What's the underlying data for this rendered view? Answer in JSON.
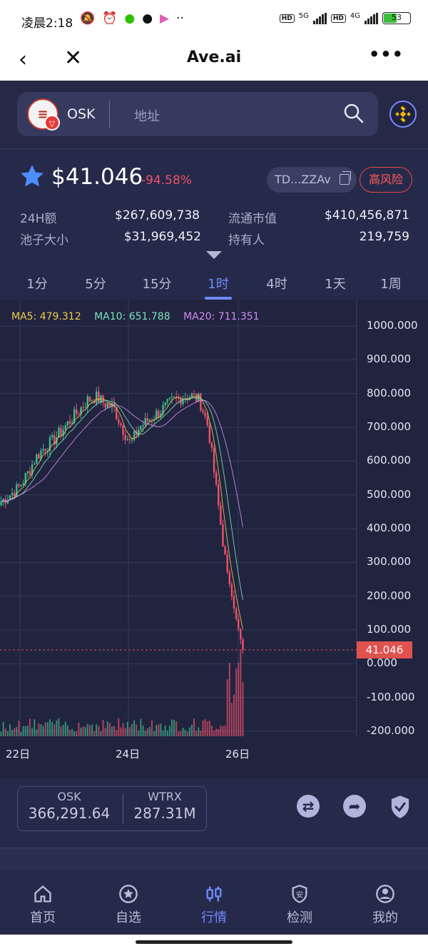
{
  "status_bar": {
    "time": "凌晨2:18",
    "net1": "5G",
    "net2": "4G",
    "hd": "HD",
    "battery": "53"
  },
  "title_bar": {
    "title": "Ave.ai",
    "back": "‹",
    "close": "✕",
    "more": "•••"
  },
  "search": {
    "token_symbol": "OSK",
    "placeholder": "地址"
  },
  "token": {
    "price": "$41.046",
    "change": "-94.58%",
    "address": "TD...ZZAv",
    "risk_badge": "高风险",
    "stats": [
      {
        "label": "24H额",
        "value": "$267,609,738"
      },
      {
        "label": "流通市值",
        "value": "$410,456,871"
      },
      {
        "label": "池子大小",
        "value": "$31,969,452"
      },
      {
        "label": "持有人",
        "value": "219,759"
      }
    ]
  },
  "tabs": [
    "1分",
    "5分",
    "15分",
    "1时",
    "4时",
    "1天",
    "1周"
  ],
  "active_tab": "1时",
  "chart_data": {
    "type": "candlestick",
    "legend": [
      {
        "name": "MA5",
        "text": "MA5: 479.312",
        "color": "#f2c94c"
      },
      {
        "name": "MA10",
        "text": "MA10: 651.788",
        "color": "#7ee3c0"
      },
      {
        "name": "MA20",
        "text": "MA20: 711.351",
        "color": "#d68cf0"
      }
    ],
    "y_ticks": [
      "1000.000",
      "900.000",
      "800.000",
      "700.000",
      "600.000",
      "500.000",
      "400.000",
      "300.000",
      "200.000",
      "100.000",
      "0.000",
      "-100.000",
      "-200.000"
    ],
    "y_tick_values": [
      1000,
      900,
      800,
      700,
      600,
      500,
      400,
      300,
      200,
      100,
      0,
      -100,
      -200
    ],
    "ylim": [
      -200,
      1000
    ],
    "x_ticks": [
      "22日",
      "24日",
      "26日"
    ],
    "last_price_label": "41.046",
    "last_price": 41.046,
    "close_path": [
      480,
      500,
      520,
      560,
      610,
      640,
      660,
      690,
      720,
      750,
      780,
      790,
      770,
      760,
      700,
      650,
      700,
      720,
      740,
      760,
      780,
      790,
      795,
      780,
      700,
      500,
      300,
      160,
      41
    ],
    "colors": {
      "up": "#3fb990",
      "down": "#f0506b"
    }
  },
  "amounts": [
    {
      "symbol": "OSK",
      "value": "366,291.64"
    },
    {
      "symbol": "WTRX",
      "value": "287.31M"
    }
  ],
  "bottom_nav": [
    {
      "label": "首页",
      "icon": "home-icon"
    },
    {
      "label": "自选",
      "icon": "star-circle-icon"
    },
    {
      "label": "行情",
      "icon": "candles-icon"
    },
    {
      "label": "检测",
      "icon": "shield-check-icon"
    },
    {
      "label": "我的",
      "icon": "user-icon"
    }
  ],
  "active_nav": "行情"
}
